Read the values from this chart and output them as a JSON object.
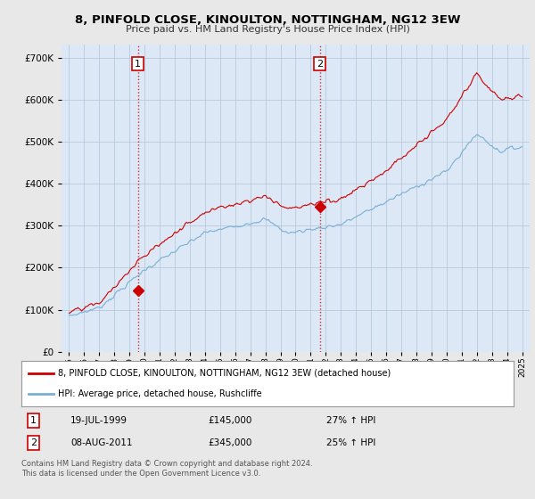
{
  "title": "8, PINFOLD CLOSE, KINOULTON, NOTTINGHAM, NG12 3EW",
  "subtitle": "Price paid vs. HM Land Registry's House Price Index (HPI)",
  "ylim": [
    0,
    730000
  ],
  "yticks": [
    0,
    100000,
    200000,
    300000,
    400000,
    500000,
    600000,
    700000
  ],
  "bg_color": "#e8e8e8",
  "plot_bg_color": "#dce8f5",
  "grid_color": "#b0c4d8",
  "red_color": "#cc0000",
  "blue_color": "#7aafd4",
  "sale1_date": 1999.55,
  "sale1_price": 145000,
  "sale2_date": 2011.6,
  "sale2_price": 345000,
  "legend_red": "8, PINFOLD CLOSE, KINOULTON, NOTTINGHAM, NG12 3EW (detached house)",
  "legend_blue": "HPI: Average price, detached house, Rushcliffe",
  "label1_date": "19-JUL-1999",
  "label1_price": "£145,000",
  "label1_hpi": "27% ↑ HPI",
  "label2_date": "08-AUG-2011",
  "label2_price": "£345,000",
  "label2_hpi": "25% ↑ HPI",
  "footnote": "Contains HM Land Registry data © Crown copyright and database right 2024.\nThis data is licensed under the Open Government Licence v3.0.",
  "xmin": 1994.5,
  "xmax": 2025.5
}
